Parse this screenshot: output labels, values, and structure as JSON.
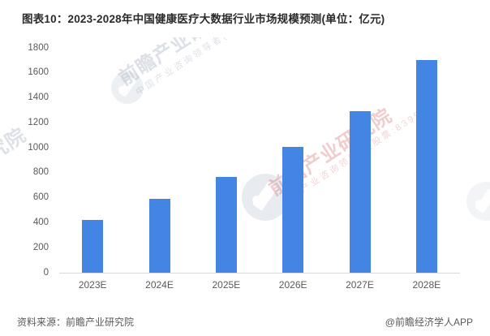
{
  "title": "图表10：2023-2028年中国健康医疗大数据行业市场规模预测(单位：亿元)",
  "footer": {
    "source": "资料来源：前瞻产业研究院",
    "credit": "@前瞻经济学人APP"
  },
  "watermark": {
    "name": "前瞻产业研究院",
    "tagline": "中国产业咨询领导者(股票:839599)"
  },
  "colors": {
    "bar": "#4285E2",
    "axis_line": "#D9D9D9",
    "tick_label": "#595959",
    "title_text": "#2B2B2B",
    "footer_text": "#595959",
    "watermark_pink": "#CE5858",
    "watermark_gray": "#96A2B6"
  },
  "chart_data": {
    "type": "bar",
    "categories": [
      "2023E",
      "2024E",
      "2025E",
      "2026E",
      "2027E",
      "2028E"
    ],
    "values": [
      420,
      590,
      765,
      1005,
      1290,
      1700
    ],
    "title": "图表10：2023-2028年中国健康医疗大数据行业市场规模预测(单位：亿元)",
    "xlabel": "",
    "ylabel": "",
    "unit": "亿元",
    "ylim": [
      0,
      1800
    ],
    "ytick_step": 200,
    "grid": false,
    "legend": false,
    "bar_color": "#4285E2"
  }
}
